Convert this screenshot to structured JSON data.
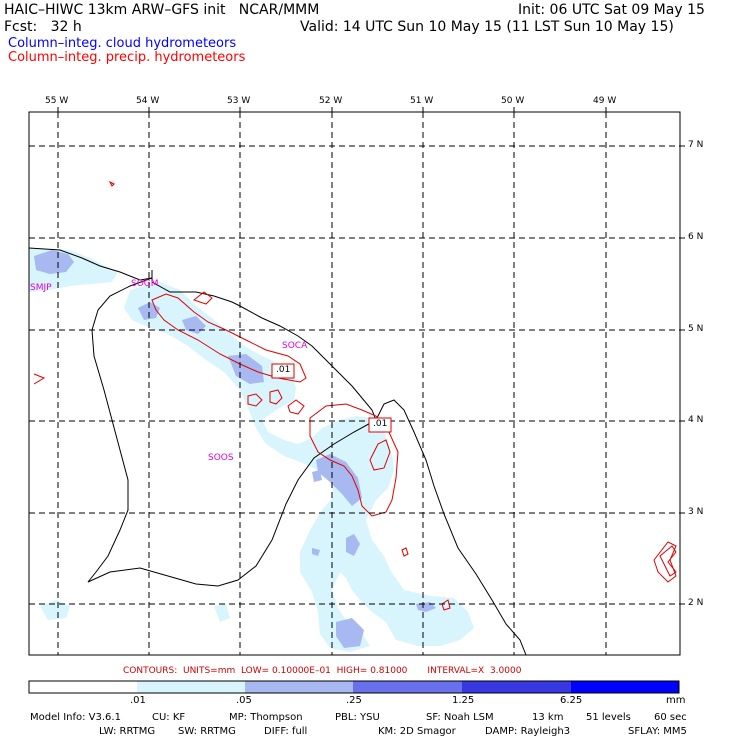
{
  "header": {
    "model": "HAIC–HIWC 13km ARW–GFS init   NCAR/MMM",
    "init": "Init: 06 UTC Sat 09 May 15",
    "fcst": "Fcst:   32 h",
    "valid": "Valid: 14 UTC Sun 10 May 15 (11 LST Sun 10 May 15)",
    "field1": "Column–integ. cloud hydrometeors",
    "field2": "Column–integ. precip. hydrometeors"
  },
  "colors": {
    "field1": "#0000ff",
    "field2": "#ff0000",
    "shade_levels": [
      "#ffffff",
      "#d8f4fc",
      "#a8b8f0",
      "#6870ec",
      "#3838e0",
      "#0000ff"
    ]
  },
  "map": {
    "lon_labels": [
      "55 W",
      "54 W",
      "53 W",
      "52 W",
      "51 W",
      "50 W",
      "49 W"
    ],
    "lat_labels": [
      "7 N",
      "6 N",
      "5 N",
      "4 N",
      "3 N",
      "2 N"
    ],
    "stations": [
      "SMJP",
      "SOGM",
      "SOCA",
      "SOOS"
    ],
    "contour_labels": [
      ".01",
      ".01"
    ]
  },
  "contours_info": "CONTOURS:  UNITS=mm  LOW= 0.10000E–01  HIGH= 0.81000       INTERVAL=X  3.0000",
  "colorbar": {
    "ticks": [
      ".01",
      ".05",
      ".25",
      "1.25",
      "6.25"
    ],
    "unit": "mm"
  },
  "model_info": {
    "line1": [
      "Model Info: V3.6.1",
      "CU: KF",
      "MP: Thompson",
      "PBL: YSU",
      "SF: Noah LSM",
      "13 km",
      "51 levels",
      "60 sec"
    ],
    "line2": [
      "LW: RRTMG",
      "SW: RRTMG",
      "DIFF: full",
      "KM: 2D Smagor",
      "DAMP: Rayleigh3",
      "SFLAY: MM5"
    ]
  }
}
